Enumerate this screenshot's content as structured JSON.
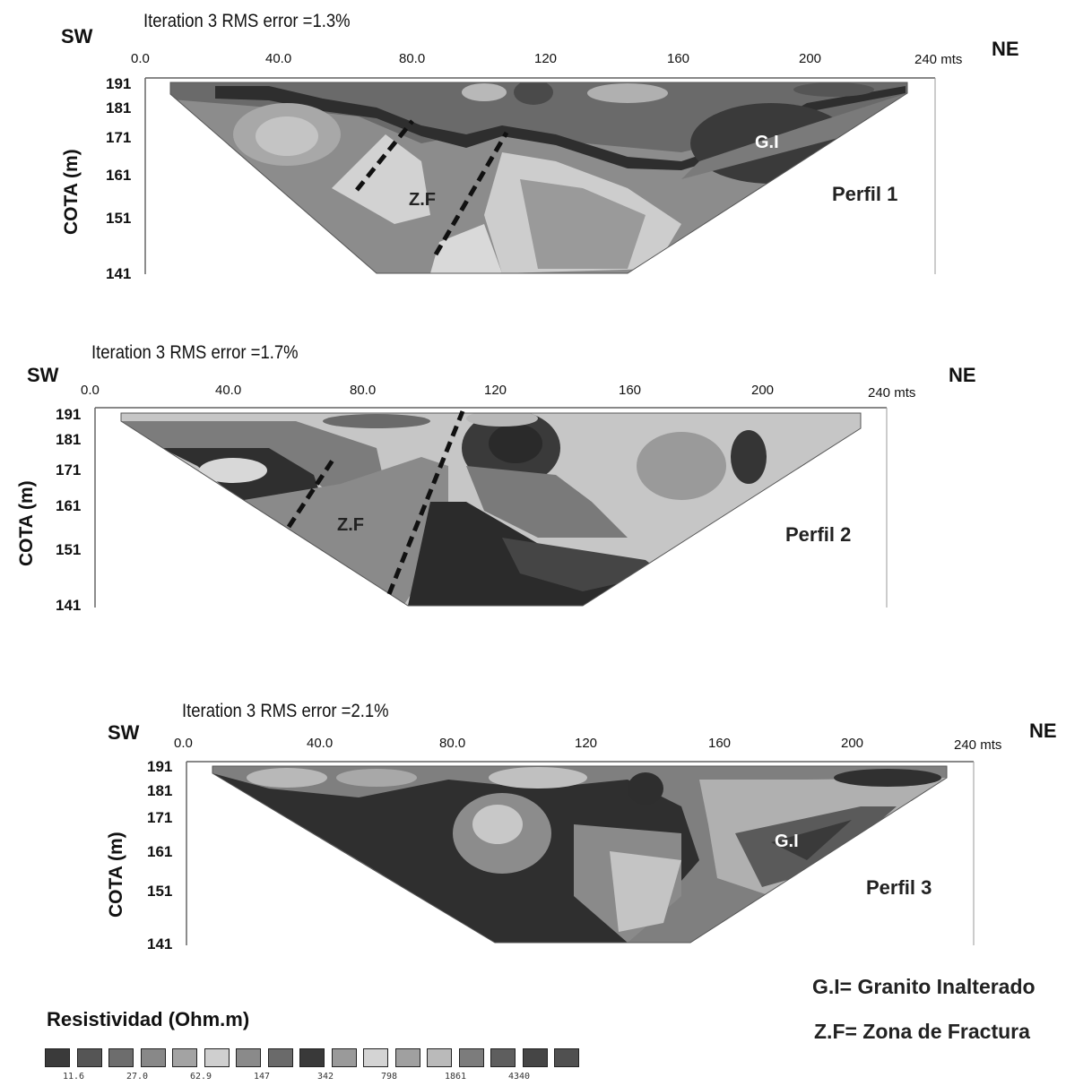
{
  "profiles": [
    {
      "iteration_label": "Iteration 3 RMS error =1.3%",
      "sw": "SW",
      "ne": "NE",
      "x_ticks": [
        "0.0",
        "40.0",
        "80.0",
        "120",
        "160",
        "200",
        "240 mts"
      ],
      "y_ticks": [
        "191",
        "181",
        "171",
        "161",
        "151",
        "141"
      ],
      "y_label": "COTA (m)",
      "name": "Perfil 1",
      "zone_zf": "Z.F",
      "zone_gi": "G.I"
    },
    {
      "iteration_label": "Iteration 3 RMS error =1.7%",
      "sw": "SW",
      "ne": "NE",
      "x_ticks": [
        "0.0",
        "40.0",
        "80.0",
        "120",
        "160",
        "200",
        "240 mts"
      ],
      "y_ticks": [
        "191",
        "181",
        "171",
        "161",
        "151",
        "141"
      ],
      "y_label": "COTA (m)",
      "name": "Perfil 2",
      "zone_zf": "Z.F"
    },
    {
      "iteration_label": "Iteration 3 RMS error =2.1%",
      "sw": "SW",
      "ne": "NE",
      "x_ticks": [
        "0.0",
        "40.0",
        "80.0",
        "120",
        "160",
        "200",
        "240 mts"
      ],
      "y_ticks": [
        "191",
        "181",
        "171",
        "161",
        "151",
        "141"
      ],
      "y_label": "COTA (m)",
      "name": "Perfil 3",
      "zone_gi": "G.I"
    }
  ],
  "legend": {
    "title": "Resistividad (Ohm.m)",
    "values": [
      "11.6",
      "27.0",
      "62.9",
      "147",
      "342",
      "798",
      "1861",
      "4340"
    ],
    "colors": [
      "#3a3a3a",
      "#555555",
      "#6d6d6d",
      "#888888",
      "#a3a3a3",
      "#cfcfcf",
      "#8a8a8a",
      "#6a6a6a",
      "#393939",
      "#9a9a9a",
      "#d4d4d4",
      "#a0a0a0",
      "#bababa",
      "#7c7c7c",
      "#5e5e5e",
      "#454545",
      "#505050"
    ]
  },
  "notes": {
    "gi": "G.I= Granito Inalterado",
    "zf": "Z.F= Zona de Fractura"
  }
}
